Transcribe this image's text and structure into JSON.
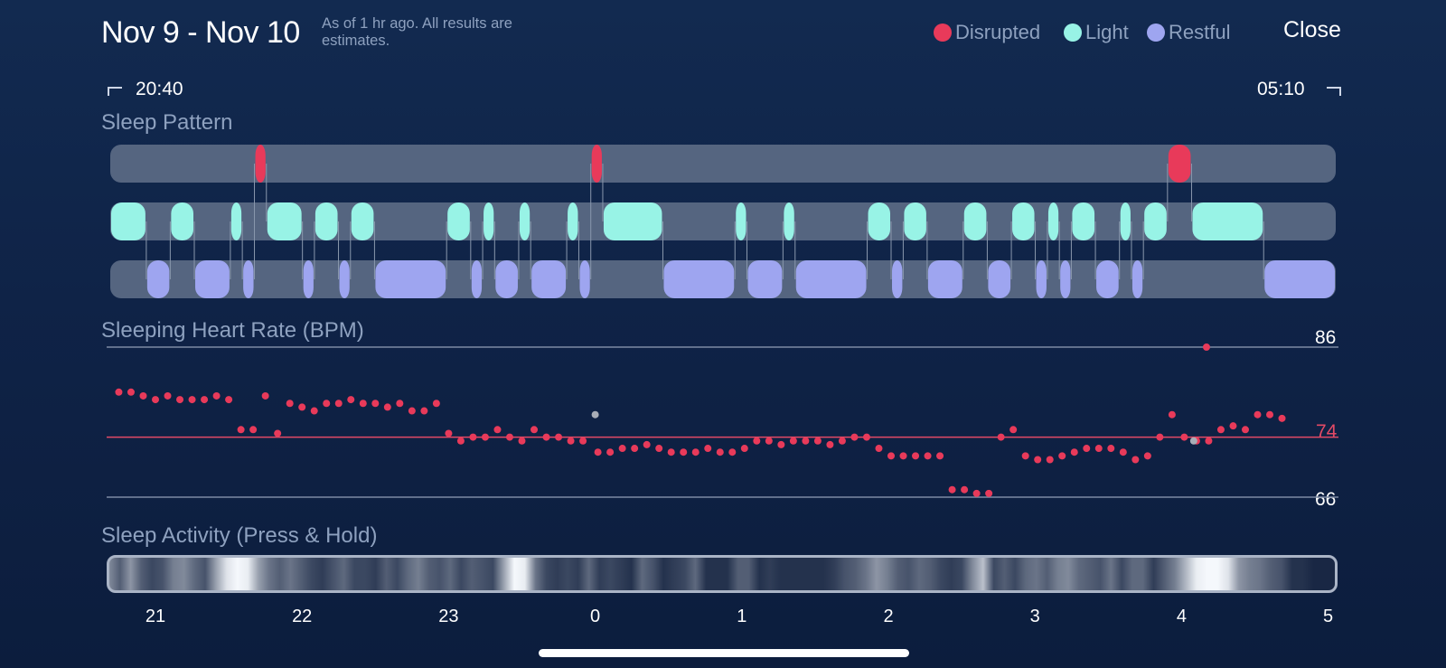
{
  "header": {
    "date_range": "Nov 9 - Nov 10",
    "as_of": "As of 1 hr ago. All results are estimates.",
    "close_label": "Close"
  },
  "legend": [
    {
      "label": "Disrupted",
      "color": "#e83a5a"
    },
    {
      "label": "Light",
      "color": "#98f3e6"
    },
    {
      "label": "Restful",
      "color": "#9ea5f0"
    }
  ],
  "time_range": {
    "start": "20:40",
    "end": "05:10"
  },
  "sleep_pattern": {
    "title": "Sleep Pattern",
    "colors": {
      "disrupted": "#e83a5a",
      "light": "#98f3e6",
      "restful": "#9ea5f0",
      "track": "#556580",
      "connector": "#8a98ad"
    },
    "start_hour": 20.667,
    "end_hour": 29.167,
    "segments": [
      {
        "stage": "light",
        "start": 20.667,
        "end": 20.917
      },
      {
        "stage": "restful",
        "start": 20.917,
        "end": 21.083
      },
      {
        "stage": "light",
        "start": 21.083,
        "end": 21.25
      },
      {
        "stage": "restful",
        "start": 21.25,
        "end": 21.5
      },
      {
        "stage": "light",
        "start": 21.5,
        "end": 21.583
      },
      {
        "stage": "restful",
        "start": 21.583,
        "end": 21.667
      },
      {
        "stage": "disrupted",
        "start": 21.667,
        "end": 21.75
      },
      {
        "stage": "light",
        "start": 21.75,
        "end": 22.0
      },
      {
        "stage": "restful",
        "start": 22.0,
        "end": 22.083
      },
      {
        "stage": "light",
        "start": 22.083,
        "end": 22.25
      },
      {
        "stage": "restful",
        "start": 22.25,
        "end": 22.333
      },
      {
        "stage": "light",
        "start": 22.333,
        "end": 22.5
      },
      {
        "stage": "restful",
        "start": 22.5,
        "end": 23.0
      },
      {
        "stage": "light",
        "start": 23.0,
        "end": 23.167
      },
      {
        "stage": "restful",
        "start": 23.167,
        "end": 23.25
      },
      {
        "stage": "light",
        "start": 23.25,
        "end": 23.333
      },
      {
        "stage": "restful",
        "start": 23.333,
        "end": 23.5
      },
      {
        "stage": "light",
        "start": 23.5,
        "end": 23.583
      },
      {
        "stage": "restful",
        "start": 23.583,
        "end": 23.833
      },
      {
        "stage": "light",
        "start": 23.833,
        "end": 23.917
      },
      {
        "stage": "restful",
        "start": 23.917,
        "end": 24.0
      },
      {
        "stage": "disrupted",
        "start": 24.0,
        "end": 24.083
      },
      {
        "stage": "light",
        "start": 24.083,
        "end": 24.5
      },
      {
        "stage": "restful",
        "start": 24.5,
        "end": 25.0
      },
      {
        "stage": "light",
        "start": 25.0,
        "end": 25.083
      },
      {
        "stage": "restful",
        "start": 25.083,
        "end": 25.333
      },
      {
        "stage": "light",
        "start": 25.333,
        "end": 25.417
      },
      {
        "stage": "restful",
        "start": 25.417,
        "end": 25.917
      },
      {
        "stage": "light",
        "start": 25.917,
        "end": 26.083
      },
      {
        "stage": "restful",
        "start": 26.083,
        "end": 26.167
      },
      {
        "stage": "light",
        "start": 26.167,
        "end": 26.333
      },
      {
        "stage": "restful",
        "start": 26.333,
        "end": 26.583
      },
      {
        "stage": "light",
        "start": 26.583,
        "end": 26.75
      },
      {
        "stage": "restful",
        "start": 26.75,
        "end": 26.917
      },
      {
        "stage": "light",
        "start": 26.917,
        "end": 27.083
      },
      {
        "stage": "restful",
        "start": 27.083,
        "end": 27.167
      },
      {
        "stage": "light",
        "start": 27.167,
        "end": 27.25
      },
      {
        "stage": "restful",
        "start": 27.25,
        "end": 27.333
      },
      {
        "stage": "light",
        "start": 27.333,
        "end": 27.5
      },
      {
        "stage": "restful",
        "start": 27.5,
        "end": 27.667
      },
      {
        "stage": "light",
        "start": 27.667,
        "end": 27.75
      },
      {
        "stage": "restful",
        "start": 27.75,
        "end": 27.833
      },
      {
        "stage": "light",
        "start": 27.833,
        "end": 28.0
      },
      {
        "stage": "disrupted",
        "start": 28.0,
        "end": 28.167
      },
      {
        "stage": "light",
        "start": 28.167,
        "end": 28.667
      },
      {
        "stage": "restful",
        "start": 28.667,
        "end": 29.167
      }
    ]
  },
  "heart_rate": {
    "title": "Sleeping Heart Rate (BPM)",
    "max_label": "86",
    "avg_label": "74",
    "min_label": "66",
    "max": 86,
    "avg": 74,
    "min": 66,
    "point_color": "#e83a5a",
    "gap_color": "#a8adb7",
    "interval_min": 5,
    "start_hour": 20.75,
    "values": [
      80,
      80,
      79.5,
      79,
      79.5,
      79,
      79,
      79,
      79.5,
      79,
      75,
      75,
      79.5,
      74.5,
      78.5,
      78,
      77.5,
      78.5,
      78.5,
      79,
      78.5,
      78.5,
      78,
      78.5,
      77.5,
      77.5,
      78.5,
      74.5,
      73.5,
      74,
      74,
      75,
      74,
      73.5,
      75,
      74,
      74,
      73.5,
      73.5,
      72,
      72,
      72.5,
      72.5,
      73,
      72.5,
      72,
      72,
      72,
      72.5,
      72,
      72,
      72.5,
      73.5,
      73.5,
      73,
      73.5,
      73.5,
      73.5,
      73,
      73.5,
      74,
      74,
      72.5,
      71.5,
      71.5,
      71.5,
      71.5,
      71.5,
      67,
      67,
      66.5,
      66.5,
      74,
      75,
      71.5,
      71,
      71,
      71.5,
      72,
      72.5,
      72.5,
      72.5,
      72,
      71,
      71.5,
      74,
      77,
      74,
      73.5,
      73.5,
      75,
      75.5,
      75,
      77,
      77,
      76.5
    ],
    "gaps": [
      {
        "hour": 24.0,
        "value": 77
      },
      {
        "hour": 28.083,
        "value": 73.5
      }
    ],
    "peak": {
      "hour": 28.17,
      "value": 86
    }
  },
  "sleep_activity": {
    "title": "Sleep Activity (Press & Hold)",
    "start_hour": 20.667,
    "end_hour": 29.167,
    "intensity": [
      0.5,
      0.3,
      0.55,
      0.3,
      0.2,
      0.25,
      0.45,
      0.5,
      0.35,
      0.25,
      0.6,
      0.9,
      1.0,
      0.95,
      0.6,
      0.4,
      0.3,
      0.4,
      0.3,
      0.2,
      0.15,
      0.25,
      0.35,
      0.2,
      0.2,
      0.15,
      0.3,
      0.2,
      0.35,
      0.45,
      0.3,
      0.25,
      0.35,
      0.2,
      0.3,
      0.25,
      0.2,
      0.6,
      1.0,
      0.95,
      0.4,
      0.2,
      0.15,
      0.2,
      0.15,
      0.35,
      0.15,
      0.2,
      0.15,
      0.1,
      0.35,
      0.25,
      0.1,
      0.15,
      0.2,
      0.35,
      0.1,
      0.1,
      0.1,
      0.3,
      0.3,
      0.1,
      0.15,
      0.1,
      0.1,
      0.1,
      0.1,
      0.1,
      0.15,
      0.25,
      0.3,
      0.4,
      0.55,
      0.45,
      0.3,
      0.25,
      0.35,
      0.3,
      0.2,
      0.15,
      0.2,
      0.5,
      0.75,
      0.2,
      0.3,
      0.2,
      0.35,
      0.4,
      0.3,
      0.45,
      0.5,
      0.35,
      0.3,
      0.25,
      0.4,
      0.2,
      0.35,
      0.35,
      0.15,
      0.3,
      0.45,
      0.7,
      0.95,
      1.0,
      1.0,
      0.9,
      0.55,
      0.45,
      0.4,
      0.3,
      0.25,
      0.1,
      0.1,
      0.05,
      0.05,
      0.05
    ]
  },
  "axis": {
    "ticks": [
      {
        "label": "21",
        "hour": 21
      },
      {
        "label": "22",
        "hour": 22
      },
      {
        "label": "23",
        "hour": 23
      },
      {
        "label": "0",
        "hour": 24
      },
      {
        "label": "1",
        "hour": 25
      },
      {
        "label": "2",
        "hour": 26
      },
      {
        "label": "3",
        "hour": 27
      },
      {
        "label": "4",
        "hour": 28
      },
      {
        "label": "5",
        "hour": 29
      }
    ]
  }
}
